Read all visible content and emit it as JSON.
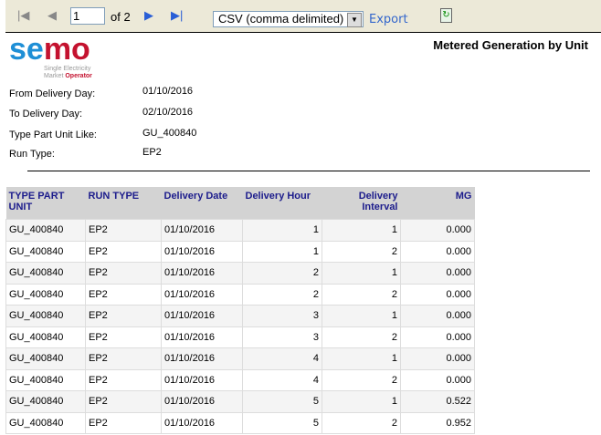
{
  "toolbar": {
    "page": "1",
    "of_label": "of 2",
    "export_format": "CSV (comma delimited)",
    "export_label": "Export"
  },
  "logo": {
    "text": "semo",
    "line1": "Single Electricity",
    "line2a": "Market ",
    "line2b": "Operator"
  },
  "report": {
    "title": "Metered Generation by Unit"
  },
  "params": [
    {
      "label": "From Delivery Day:",
      "value": "01/10/2016"
    },
    {
      "label": "To Delivery Day:",
      "value": "02/10/2016"
    },
    {
      "label": "Type Part Unit Like:",
      "value": "GU_400840"
    },
    {
      "label": "Run Type:",
      "value": "EP2"
    }
  ],
  "table": {
    "headers": [
      "TYPE PART UNIT",
      "RUN TYPE",
      "Delivery Date",
      "Delivery Hour",
      "Delivery Interval",
      "MG"
    ],
    "rows": [
      [
        "GU_400840",
        "EP2",
        "01/10/2016",
        "1",
        "1",
        "0.000"
      ],
      [
        "GU_400840",
        "EP2",
        "01/10/2016",
        "1",
        "2",
        "0.000"
      ],
      [
        "GU_400840",
        "EP2",
        "01/10/2016",
        "2",
        "1",
        "0.000"
      ],
      [
        "GU_400840",
        "EP2",
        "01/10/2016",
        "2",
        "2",
        "0.000"
      ],
      [
        "GU_400840",
        "EP2",
        "01/10/2016",
        "3",
        "1",
        "0.000"
      ],
      [
        "GU_400840",
        "EP2",
        "01/10/2016",
        "3",
        "2",
        "0.000"
      ],
      [
        "GU_400840",
        "EP2",
        "01/10/2016",
        "4",
        "1",
        "0.000"
      ],
      [
        "GU_400840",
        "EP2",
        "01/10/2016",
        "4",
        "2",
        "0.000"
      ],
      [
        "GU_400840",
        "EP2",
        "01/10/2016",
        "5",
        "1",
        "0.522"
      ],
      [
        "GU_400840",
        "EP2",
        "01/10/2016",
        "5",
        "2",
        "0.952"
      ]
    ]
  }
}
